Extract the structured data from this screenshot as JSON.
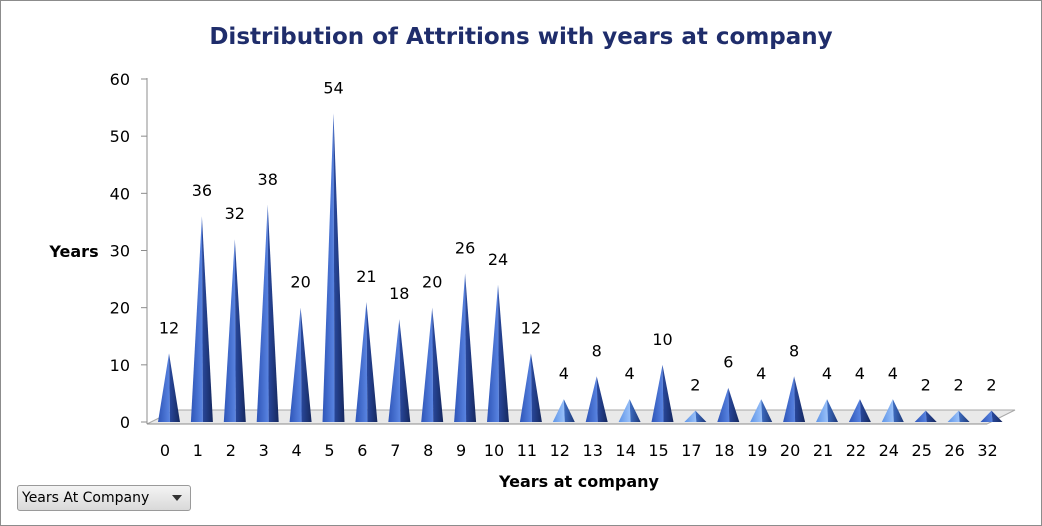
{
  "chart_data": {
    "type": "bar",
    "bar_shape": "cone",
    "title": "Distribution of Attritions  with years at company",
    "xlabel": "Years at company",
    "ylabel": "Years",
    "ylim": [
      0,
      60
    ],
    "yticks": [
      0,
      10,
      20,
      30,
      40,
      50,
      60
    ],
    "categories": [
      "0",
      "1",
      "2",
      "3",
      "4",
      "5",
      "6",
      "7",
      "8",
      "9",
      "10",
      "11",
      "12",
      "13",
      "14",
      "15",
      "17",
      "18",
      "19",
      "20",
      "21",
      "22",
      "24",
      "25",
      "26",
      "32"
    ],
    "values": [
      12,
      36,
      32,
      38,
      20,
      54,
      21,
      18,
      20,
      26,
      24,
      12,
      4,
      8,
      4,
      10,
      2,
      6,
      4,
      8,
      4,
      4,
      4,
      2,
      2,
      2
    ],
    "data_labels": true,
    "grid": false,
    "legend": "none",
    "colors": {
      "dark_bar": "#3a62c8",
      "light_bar": "#6ea3ef",
      "title": "#1f2d6b"
    }
  },
  "field_button": {
    "label": "Years At Company",
    "icon": "chevron-down-icon"
  }
}
